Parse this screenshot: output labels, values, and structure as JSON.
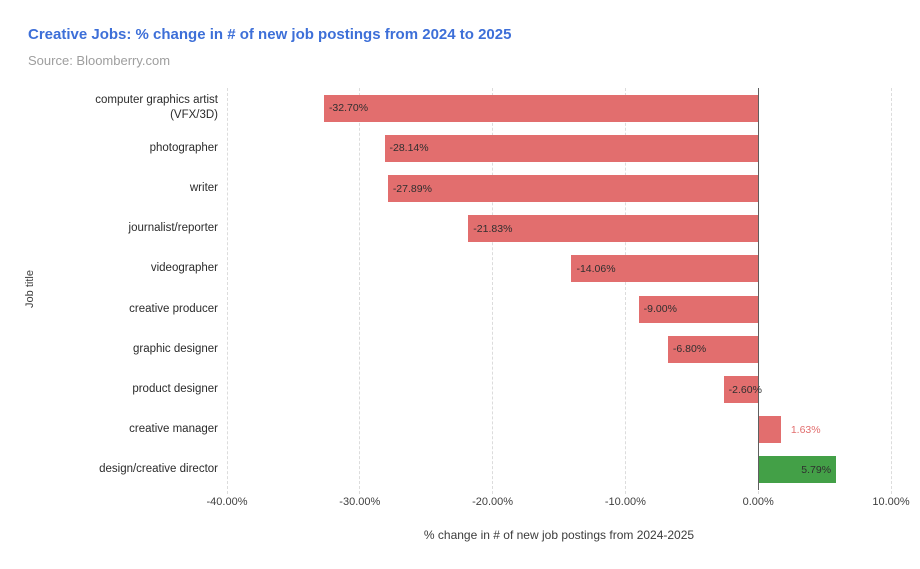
{
  "header": {
    "title": "Creative Jobs: % change in # of new job postings from 2024 to 2025",
    "source": "Source: Bloomberry.com"
  },
  "chart_data": {
    "type": "bar",
    "orientation": "horizontal",
    "title": "Creative Jobs: % change in # of new job postings from 2024 to 2025",
    "subtitle": "Source: Bloomberry.com",
    "xlabel": "% change in # of new job postings from 2024-2025",
    "ylabel": "Job title",
    "xlim": [
      -40,
      10
    ],
    "grid": true,
    "legend": false,
    "categories": [
      "computer graphics artist (VFX/3D)",
      "photographer",
      "writer",
      "journalist/reporter",
      "videographer",
      "creative producer",
      "graphic designer",
      "product designer",
      "creative manager",
      "design/creative director"
    ],
    "values": [
      -32.7,
      -28.14,
      -27.89,
      -21.83,
      -14.06,
      -9.0,
      -6.8,
      -2.6,
      1.63,
      5.79
    ],
    "value_labels": [
      "-32.70%",
      "-28.14%",
      "-27.89%",
      "-21.83%",
      "-14.06%",
      "-9.00%",
      "-6.80%",
      "-2.60%",
      "1.63%",
      "5.79%"
    ],
    "label_placements": [
      "inside-start",
      "inside-start",
      "inside-start",
      "inside-start",
      "inside-start",
      "inside-start",
      "inside-start",
      "inside-start",
      "outside-end",
      "inside-end"
    ],
    "bar_colors": [
      "#e26e6e",
      "#e26e6e",
      "#e26e6e",
      "#e26e6e",
      "#e26e6e",
      "#e26e6e",
      "#e26e6e",
      "#e26e6e",
      "#e26e6e",
      "#43a047"
    ],
    "x_ticks": [
      "-40.00%",
      "-30.00%",
      "-20.00%",
      "-10.00%",
      "0.00%",
      "10.00%"
    ],
    "x_tick_values": [
      -40,
      -30,
      -20,
      -10,
      0,
      10
    ],
    "colors": {
      "negative_bar": "#e26e6e",
      "positive_bar": "#43a047",
      "value_label_inside": "#2f2f2f",
      "value_label_outside": "#e26e6e",
      "title": "#3d6fd8",
      "source": "#9e9e9e"
    }
  }
}
